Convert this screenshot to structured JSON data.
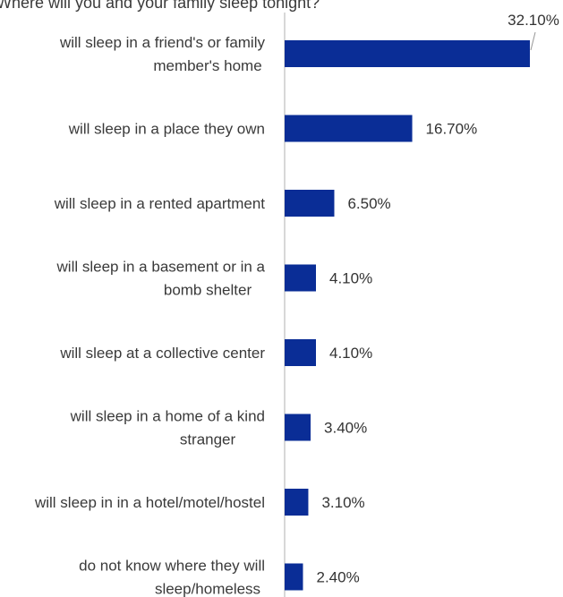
{
  "chart_data": {
    "type": "bar",
    "orientation": "horizontal",
    "title": "Where will you and your family sleep tonight?",
    "categories": [
      [
        "will sleep in a friend's or family",
        "member's home"
      ],
      [
        "will sleep in a place they own"
      ],
      [
        "will sleep in a rented apartment"
      ],
      [
        "will sleep in a basement or in a",
        "bomb shelter"
      ],
      [
        "will sleep at a collective center"
      ],
      [
        "will sleep in a home of a kind",
        "stranger"
      ],
      [
        "will sleep in in a hotel/motel/hostel"
      ],
      [
        "do not know where they will",
        "sleep/homeless"
      ]
    ],
    "values": [
      32.1,
      16.7,
      6.5,
      4.1,
      4.1,
      3.4,
      3.1,
      2.4
    ],
    "value_labels": [
      "32.10%",
      "16.70%",
      "6.50%",
      "4.10%",
      "4.10%",
      "3.40%",
      "3.10%",
      "2.40%"
    ],
    "value_unit": "%",
    "xlim": [
      0,
      35
    ],
    "bar_color": "#0a2d96",
    "axis_color": "#cccccc",
    "grid": false,
    "legend": "none"
  }
}
